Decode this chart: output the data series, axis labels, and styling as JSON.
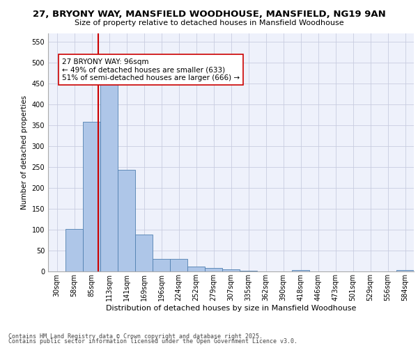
{
  "title1": "27, BRYONY WAY, MANSFIELD WOODHOUSE, MANSFIELD, NG19 9AN",
  "title2": "Size of property relative to detached houses in Mansfield Woodhouse",
  "xlabel": "Distribution of detached houses by size in Mansfield Woodhouse",
  "ylabel": "Number of detached properties",
  "bin_labels": [
    "30sqm",
    "58sqm",
    "85sqm",
    "113sqm",
    "141sqm",
    "169sqm",
    "196sqm",
    "224sqm",
    "252sqm",
    "279sqm",
    "307sqm",
    "335sqm",
    "362sqm",
    "390sqm",
    "418sqm",
    "446sqm",
    "473sqm",
    "501sqm",
    "529sqm",
    "556sqm",
    "584sqm"
  ],
  "bar_values": [
    0,
    102,
    357,
    456,
    243,
    88,
    30,
    30,
    12,
    8,
    5,
    1,
    0,
    0,
    3,
    0,
    0,
    0,
    0,
    0,
    3
  ],
  "bar_color": "#aec6e8",
  "bar_edge_color": "#5080b0",
  "vline_color": "#cc0000",
  "annotation_text": "27 BRYONY WAY: 96sqm\n← 49% of detached houses are smaller (633)\n51% of semi-detached houses are larger (666) →",
  "annotation_box_color": "#ffffff",
  "annotation_box_edge_color": "#cc0000",
  "ylim": [
    0,
    570
  ],
  "yticks": [
    0,
    50,
    100,
    150,
    200,
    250,
    300,
    350,
    400,
    450,
    500,
    550
  ],
  "footer1": "Contains HM Land Registry data © Crown copyright and database right 2025.",
  "footer2": "Contains public sector information licensed under the Open Government Licence v3.0.",
  "bg_color": "#eef1fb",
  "grid_color": "#c8cce0",
  "title1_fontsize": 9.5,
  "title2_fontsize": 8.0,
  "xlabel_fontsize": 8.0,
  "ylabel_fontsize": 7.5,
  "tick_fontsize": 7.0,
  "footer_fontsize": 6.0,
  "annot_fontsize": 7.5
}
